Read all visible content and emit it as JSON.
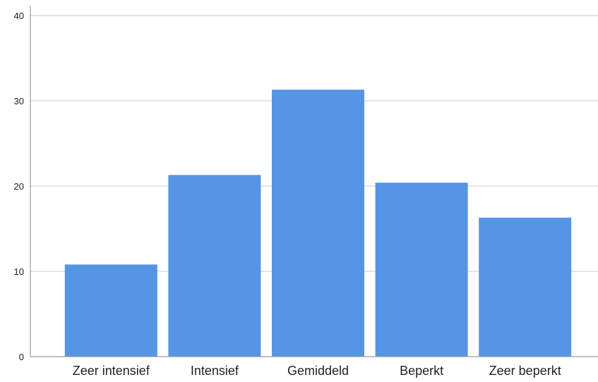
{
  "chart_data": {
    "type": "bar",
    "categories": [
      "Zeer intensief",
      "Intensief",
      "Gemiddeld",
      "Beperkt",
      "Zeer beperkt"
    ],
    "values": [
      10.8,
      21.3,
      31.3,
      20.4,
      16.3
    ],
    "ylim": [
      0,
      40
    ],
    "yticks": [
      0,
      10,
      20,
      30,
      40
    ],
    "grid": true,
    "bar_color": "#5595e5",
    "grid_color": "#d3d3d3",
    "axis_color": "#9a9a9a"
  }
}
